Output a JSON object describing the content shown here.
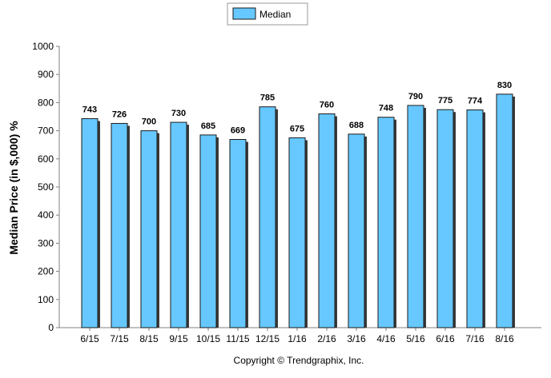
{
  "chart_data": {
    "type": "bar",
    "categories": [
      "6/15",
      "7/15",
      "8/15",
      "9/15",
      "10/15",
      "11/15",
      "12/15",
      "1/16",
      "2/16",
      "3/16",
      "4/16",
      "5/16",
      "6/16",
      "7/16",
      "8/16"
    ],
    "series": [
      {
        "name": "Median",
        "values": [
          743,
          726,
          700,
          730,
          685,
          669,
          785,
          675,
          760,
          688,
          748,
          790,
          775,
          774,
          830
        ]
      }
    ],
    "ylabel": "Median Price (in $,000) %",
    "xlabel": "",
    "ylim": [
      0,
      1000
    ],
    "yticks": [
      0,
      100,
      200,
      300,
      400,
      500,
      600,
      700,
      800,
      900,
      1000
    ],
    "grid": false,
    "legend": "top-center",
    "colors": {
      "bar_fill": "#66c8ff",
      "bar_stroke": "#1a1a1a",
      "axis": "#808080"
    }
  },
  "footer": {
    "copyright": "Copyright © Trendgraphix, Inc."
  }
}
